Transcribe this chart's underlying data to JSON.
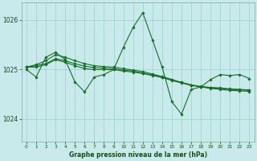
{
  "xlabel": "Graphe pression niveau de la mer (hPa)",
  "ylim": [
    1023.55,
    1026.35
  ],
  "xlim": [
    -0.5,
    23.5
  ],
  "yticks": [
    1024,
    1025,
    1026
  ],
  "xticks": [
    0,
    1,
    2,
    3,
    4,
    5,
    6,
    7,
    8,
    9,
    10,
    11,
    12,
    13,
    14,
    15,
    16,
    17,
    18,
    19,
    20,
    21,
    22,
    23
  ],
  "bg_color": "#c8eaea",
  "grid_color": "#9ecece",
  "line_color": "#1a6b2a",
  "marker": "D",
  "markersize": 1.8,
  "linewidth": 0.8,
  "figsize": [
    3.2,
    2.0
  ],
  "dpi": 100,
  "series": [
    [
      1025.0,
      1024.85,
      1025.25,
      1025.35,
      1025.2,
      1024.75,
      1024.55,
      1024.85,
      1024.9,
      1025.0,
      1025.45,
      1025.85,
      1026.15,
      1025.6,
      1025.05,
      1024.35,
      1024.1,
      1024.6,
      1024.65,
      1024.8,
      1024.9,
      1024.88,
      1024.9,
      1024.82
    ],
    [
      1025.05,
      1025.05,
      1025.1,
      1025.2,
      1025.15,
      1025.08,
      1025.02,
      1025.0,
      1025.0,
      1025.0,
      1024.97,
      1024.95,
      1024.92,
      1024.88,
      1024.84,
      1024.78,
      1024.73,
      1024.68,
      1024.65,
      1024.63,
      1024.62,
      1024.6,
      1024.59,
      1024.58
    ],
    [
      1025.05,
      1025.08,
      1025.12,
      1025.22,
      1025.18,
      1025.12,
      1025.07,
      1025.04,
      1025.03,
      1025.02,
      1024.99,
      1024.97,
      1024.93,
      1024.89,
      1024.85,
      1024.79,
      1024.74,
      1024.69,
      1024.66,
      1024.64,
      1024.63,
      1024.61,
      1024.6,
      1024.59
    ],
    [
      1025.05,
      1025.1,
      1025.18,
      1025.3,
      1025.25,
      1025.18,
      1025.12,
      1025.08,
      1025.06,
      1025.05,
      1025.02,
      1024.99,
      1024.96,
      1024.91,
      1024.86,
      1024.8,
      1024.74,
      1024.69,
      1024.65,
      1024.62,
      1024.6,
      1024.58,
      1024.57,
      1024.56
    ]
  ]
}
